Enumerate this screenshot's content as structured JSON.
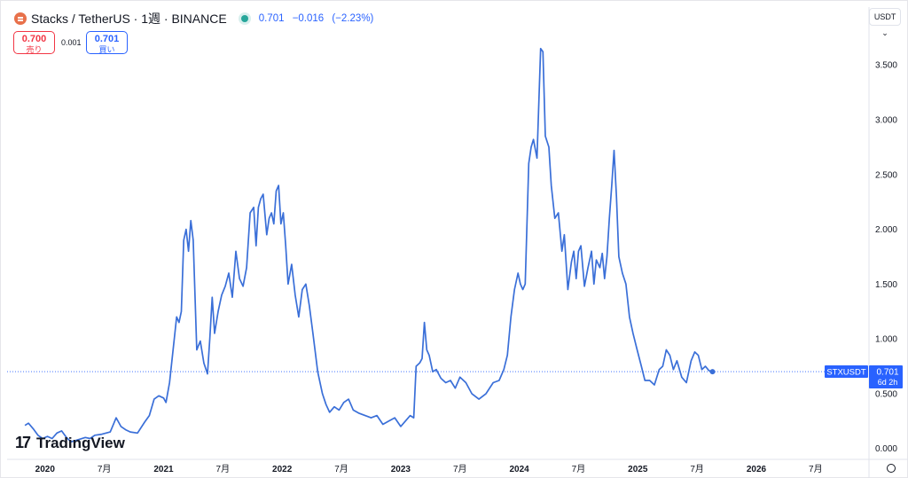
{
  "header": {
    "title": "Stacks / TetherUS · 1週 · BINANCE",
    "last": "0.701",
    "change": "−0.016",
    "change_pct": "(−2.23%)"
  },
  "trade": {
    "sell_price": "0.700",
    "sell_label": "売り",
    "spread": "0.001",
    "buy_price": "0.701",
    "buy_label": "買い"
  },
  "currency_selector": "USDT",
  "branding": {
    "name": "TradingView"
  },
  "colors": {
    "line": "#3a6fd8",
    "accent": "#2962ff",
    "sell": "#f23645",
    "market_dot": "#26a69a",
    "price_tag": "#2962ff"
  },
  "price_tag": {
    "symbol": "STXUSDT",
    "price": "0.701",
    "countdown": "6d 2h"
  },
  "chart_data": {
    "type": "line",
    "title": "Stacks / TetherUS · 1週 · BINANCE",
    "ylim": [
      -0.1,
      3.85
    ],
    "yticks": [
      0.0,
      0.5,
      1.0,
      1.5,
      2.0,
      2.5,
      3.0,
      3.5
    ],
    "ytick_labels": [
      "0.000",
      "0.500",
      "1.000",
      "1.500",
      "2.000",
      "2.500",
      "3.000",
      "3.500"
    ],
    "xlim": [
      2019.68,
      2026.95
    ],
    "xticks": [
      {
        "t": 2020.0,
        "label": "2020",
        "bold": true
      },
      {
        "t": 2020.5,
        "label": "7月",
        "bold": false
      },
      {
        "t": 2021.0,
        "label": "2021",
        "bold": true
      },
      {
        "t": 2021.5,
        "label": "7月",
        "bold": false
      },
      {
        "t": 2022.0,
        "label": "2022",
        "bold": true
      },
      {
        "t": 2022.5,
        "label": "7月",
        "bold": false
      },
      {
        "t": 2023.0,
        "label": "2023",
        "bold": true
      },
      {
        "t": 2023.5,
        "label": "7月",
        "bold": false
      },
      {
        "t": 2024.0,
        "label": "2024",
        "bold": true
      },
      {
        "t": 2024.5,
        "label": "7月",
        "bold": false
      },
      {
        "t": 2025.0,
        "label": "2025",
        "bold": true
      },
      {
        "t": 2025.5,
        "label": "7月",
        "bold": false
      },
      {
        "t": 2026.0,
        "label": "2026",
        "bold": true
      },
      {
        "t": 2026.5,
        "label": "7月",
        "bold": false
      }
    ],
    "last_price": 0.701,
    "points": [
      [
        2019.83,
        0.21
      ],
      [
        2019.86,
        0.23
      ],
      [
        2019.9,
        0.18
      ],
      [
        2019.94,
        0.12
      ],
      [
        2019.98,
        0.09
      ],
      [
        2020.02,
        0.11
      ],
      [
        2020.06,
        0.09
      ],
      [
        2020.1,
        0.14
      ],
      [
        2020.14,
        0.16
      ],
      [
        2020.18,
        0.1
      ],
      [
        2020.22,
        0.06
      ],
      [
        2020.28,
        0.08
      ],
      [
        2020.34,
        0.1
      ],
      [
        2020.38,
        0.09
      ],
      [
        2020.42,
        0.12
      ],
      [
        2020.48,
        0.13
      ],
      [
        2020.55,
        0.15
      ],
      [
        2020.6,
        0.28
      ],
      [
        2020.64,
        0.2
      ],
      [
        2020.68,
        0.17
      ],
      [
        2020.72,
        0.15
      ],
      [
        2020.78,
        0.14
      ],
      [
        2020.84,
        0.24
      ],
      [
        2020.88,
        0.3
      ],
      [
        2020.92,
        0.45
      ],
      [
        2020.96,
        0.48
      ],
      [
        2021.0,
        0.46
      ],
      [
        2021.02,
        0.42
      ],
      [
        2021.05,
        0.6
      ],
      [
        2021.08,
        0.9
      ],
      [
        2021.11,
        1.2
      ],
      [
        2021.13,
        1.15
      ],
      [
        2021.15,
        1.25
      ],
      [
        2021.17,
        1.9
      ],
      [
        2021.19,
        2.0
      ],
      [
        2021.21,
        1.8
      ],
      [
        2021.23,
        2.08
      ],
      [
        2021.25,
        1.9
      ],
      [
        2021.28,
        0.9
      ],
      [
        2021.31,
        0.98
      ],
      [
        2021.34,
        0.78
      ],
      [
        2021.37,
        0.68
      ],
      [
        2021.39,
        1.0
      ],
      [
        2021.41,
        1.38
      ],
      [
        2021.43,
        1.05
      ],
      [
        2021.46,
        1.25
      ],
      [
        2021.49,
        1.4
      ],
      [
        2021.52,
        1.48
      ],
      [
        2021.55,
        1.6
      ],
      [
        2021.58,
        1.38
      ],
      [
        2021.61,
        1.8
      ],
      [
        2021.64,
        1.55
      ],
      [
        2021.67,
        1.48
      ],
      [
        2021.7,
        1.65
      ],
      [
        2021.73,
        2.15
      ],
      [
        2021.76,
        2.2
      ],
      [
        2021.78,
        1.85
      ],
      [
        2021.8,
        2.2
      ],
      [
        2021.82,
        2.28
      ],
      [
        2021.84,
        2.32
      ],
      [
        2021.87,
        1.95
      ],
      [
        2021.89,
        2.1
      ],
      [
        2021.91,
        2.15
      ],
      [
        2021.93,
        2.05
      ],
      [
        2021.95,
        2.35
      ],
      [
        2021.97,
        2.4
      ],
      [
        2021.99,
        2.05
      ],
      [
        2022.01,
        2.15
      ],
      [
        2022.03,
        1.85
      ],
      [
        2022.05,
        1.5
      ],
      [
        2022.08,
        1.68
      ],
      [
        2022.11,
        1.4
      ],
      [
        2022.14,
        1.2
      ],
      [
        2022.17,
        1.45
      ],
      [
        2022.2,
        1.5
      ],
      [
        2022.23,
        1.3
      ],
      [
        2022.26,
        1.05
      ],
      [
        2022.3,
        0.7
      ],
      [
        2022.34,
        0.5
      ],
      [
        2022.37,
        0.4
      ],
      [
        2022.4,
        0.33
      ],
      [
        2022.44,
        0.38
      ],
      [
        2022.48,
        0.35
      ],
      [
        2022.52,
        0.42
      ],
      [
        2022.56,
        0.45
      ],
      [
        2022.6,
        0.35
      ],
      [
        2022.65,
        0.32
      ],
      [
        2022.7,
        0.3
      ],
      [
        2022.75,
        0.28
      ],
      [
        2022.8,
        0.3
      ],
      [
        2022.85,
        0.22
      ],
      [
        2022.9,
        0.25
      ],
      [
        2022.95,
        0.28
      ],
      [
        2023.0,
        0.2
      ],
      [
        2023.04,
        0.25
      ],
      [
        2023.08,
        0.3
      ],
      [
        2023.11,
        0.28
      ],
      [
        2023.13,
        0.75
      ],
      [
        2023.16,
        0.78
      ],
      [
        2023.18,
        0.82
      ],
      [
        2023.2,
        1.15
      ],
      [
        2023.22,
        0.9
      ],
      [
        2023.24,
        0.85
      ],
      [
        2023.27,
        0.7
      ],
      [
        2023.3,
        0.72
      ],
      [
        2023.34,
        0.64
      ],
      [
        2023.38,
        0.6
      ],
      [
        2023.42,
        0.62
      ],
      [
        2023.46,
        0.55
      ],
      [
        2023.5,
        0.65
      ],
      [
        2023.55,
        0.6
      ],
      [
        2023.6,
        0.5
      ],
      [
        2023.66,
        0.45
      ],
      [
        2023.72,
        0.5
      ],
      [
        2023.78,
        0.6
      ],
      [
        2023.83,
        0.62
      ],
      [
        2023.87,
        0.72
      ],
      [
        2023.9,
        0.85
      ],
      [
        2023.93,
        1.2
      ],
      [
        2023.96,
        1.45
      ],
      [
        2023.99,
        1.6
      ],
      [
        2024.01,
        1.5
      ],
      [
        2024.03,
        1.45
      ],
      [
        2024.05,
        1.5
      ],
      [
        2024.08,
        2.6
      ],
      [
        2024.1,
        2.75
      ],
      [
        2024.12,
        2.82
      ],
      [
        2024.15,
        2.65
      ],
      [
        2024.18,
        3.65
      ],
      [
        2024.2,
        3.62
      ],
      [
        2024.22,
        2.85
      ],
      [
        2024.25,
        2.75
      ],
      [
        2024.27,
        2.4
      ],
      [
        2024.3,
        2.1
      ],
      [
        2024.33,
        2.15
      ],
      [
        2024.36,
        1.8
      ],
      [
        2024.38,
        1.95
      ],
      [
        2024.41,
        1.45
      ],
      [
        2024.44,
        1.7
      ],
      [
        2024.46,
        1.8
      ],
      [
        2024.48,
        1.55
      ],
      [
        2024.5,
        1.8
      ],
      [
        2024.52,
        1.85
      ],
      [
        2024.55,
        1.48
      ],
      [
        2024.58,
        1.65
      ],
      [
        2024.61,
        1.8
      ],
      [
        2024.63,
        1.5
      ],
      [
        2024.65,
        1.72
      ],
      [
        2024.68,
        1.65
      ],
      [
        2024.7,
        1.78
      ],
      [
        2024.72,
        1.55
      ],
      [
        2024.74,
        1.75
      ],
      [
        2024.76,
        2.1
      ],
      [
        2024.78,
        2.4
      ],
      [
        2024.8,
        2.72
      ],
      [
        2024.82,
        2.3
      ],
      [
        2024.84,
        1.75
      ],
      [
        2024.87,
        1.6
      ],
      [
        2024.9,
        1.5
      ],
      [
        2024.93,
        1.2
      ],
      [
        2024.96,
        1.05
      ],
      [
        2024.99,
        0.92
      ],
      [
        2025.03,
        0.75
      ],
      [
        2025.06,
        0.62
      ],
      [
        2025.1,
        0.62
      ],
      [
        2025.14,
        0.58
      ],
      [
        2025.18,
        0.72
      ],
      [
        2025.21,
        0.75
      ],
      [
        2025.24,
        0.9
      ],
      [
        2025.27,
        0.85
      ],
      [
        2025.3,
        0.72
      ],
      [
        2025.33,
        0.8
      ],
      [
        2025.37,
        0.65
      ],
      [
        2025.41,
        0.6
      ],
      [
        2025.45,
        0.8
      ],
      [
        2025.48,
        0.88
      ],
      [
        2025.51,
        0.85
      ],
      [
        2025.54,
        0.72
      ],
      [
        2025.57,
        0.75
      ],
      [
        2025.6,
        0.71
      ],
      [
        2025.63,
        0.7
      ]
    ]
  }
}
